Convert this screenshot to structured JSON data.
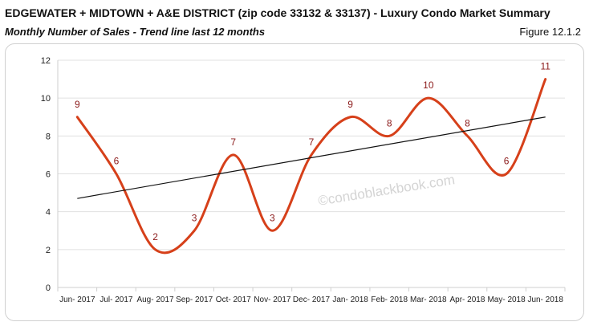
{
  "header": {
    "title": "EDGEWATER + MIDTOWN + A&E DISTRICT (zip code 33132 & 33137) - Luxury Condo Market Summary",
    "subtitle": "Monthly Number of Sales - Trend line last 12 months",
    "figure_label": "Figure 12.1.2"
  },
  "watermark": "©condoblackbook.com",
  "colors": {
    "series": "#d6401a",
    "trend": "#111111",
    "data_label": "#8b1a1a",
    "grid": "#e0e0e0",
    "axis": "#cfcfcf"
  },
  "chart_data": {
    "type": "line",
    "title": "Monthly Number of Sales - Trend line last 12 months",
    "categories": [
      "Jun- 2017",
      "Jul- 2017",
      "Aug- 2017",
      "Sep- 2017",
      "Oct- 2017",
      "Nov- 2017",
      "Dec- 2017",
      "Jan- 2018",
      "Feb- 2018",
      "Mar- 2018",
      "Apr- 2018",
      "May- 2018",
      "Jun- 2018"
    ],
    "series": [
      {
        "values": [
          9,
          6,
          2,
          3,
          7,
          3,
          7,
          9,
          8,
          10,
          8,
          6,
          11
        ],
        "smooth": true,
        "data_labels": true
      }
    ],
    "trendline": {
      "type": "linear",
      "start": 4.7,
      "end": 9.0
    },
    "ylim": [
      0,
      12
    ],
    "yticks": [
      0,
      2,
      4,
      6,
      8,
      10,
      12
    ],
    "grid": "horizontal",
    "legend": "none"
  }
}
